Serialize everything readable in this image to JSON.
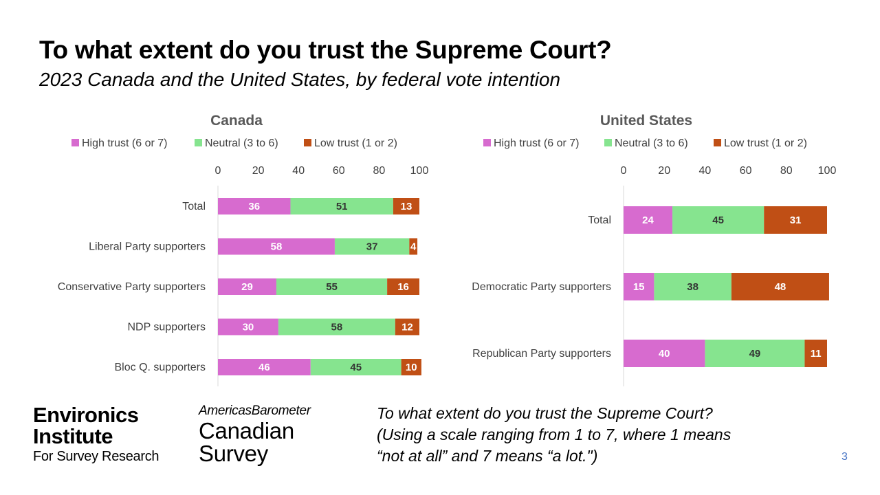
{
  "title": "To what extent do you trust the Supreme Court?",
  "subtitle": "2023  Canada and the United States, by federal vote intention",
  "colors": {
    "high": "#d76bcf",
    "neutral": "#86e48f",
    "low": "#c04f15",
    "label_on_high": "#ffffff",
    "label_on_neutral": "#333333",
    "label_on_low": "#ffffff"
  },
  "chart_data": [
    {
      "type": "bar",
      "orientation": "horizontal",
      "stacked": true,
      "title": "Canada",
      "categories": [
        "Total",
        "Liberal Party supporters",
        "Conservative Party supporters",
        "NDP supporters",
        "Bloc Q. supporters"
      ],
      "series": [
        {
          "name": "High trust (6 or 7)",
          "values": [
            36,
            58,
            29,
            30,
            46
          ]
        },
        {
          "name": "Neutral (3 to 6)",
          "values": [
            51,
            37,
            55,
            58,
            45
          ]
        },
        {
          "name": "Low trust (1 or 2)",
          "values": [
            13,
            4,
            16,
            12,
            10
          ]
        }
      ],
      "xlim": [
        0,
        100
      ],
      "xticks": [
        "0",
        "20",
        "40",
        "60",
        "80",
        "100"
      ],
      "legend": "top",
      "axis_position": "top",
      "grid": false
    },
    {
      "type": "bar",
      "orientation": "horizontal",
      "stacked": true,
      "title": "United States",
      "categories": [
        "Total",
        "Democratic Party supporters",
        "Republican Party supporters"
      ],
      "series": [
        {
          "name": "High trust (6 or 7)",
          "values": [
            24,
            15,
            40
          ]
        },
        {
          "name": "Neutral (3 to 6)",
          "values": [
            45,
            38,
            49
          ]
        },
        {
          "name": "Low trust (1 or 2)",
          "values": [
            31,
            48,
            11
          ]
        }
      ],
      "xlim": [
        0,
        100
      ],
      "xticks": [
        "0",
        "20",
        "40",
        "60",
        "80",
        "100"
      ],
      "legend": "top",
      "axis_position": "top",
      "grid": false
    }
  ],
  "footer": {
    "logo_environics": [
      "Environics",
      "Institute",
      "For Survey Research"
    ],
    "logo_barometer": [
      "AmericasBarometer",
      "Canadian",
      "Survey"
    ],
    "question_lines": [
      "To what extent do you trust the Supreme Court?",
      "(Using a scale ranging from 1 to 7, where 1 means",
      "“not at all” and 7 means “a lot.\")"
    ],
    "page_number": "3"
  }
}
